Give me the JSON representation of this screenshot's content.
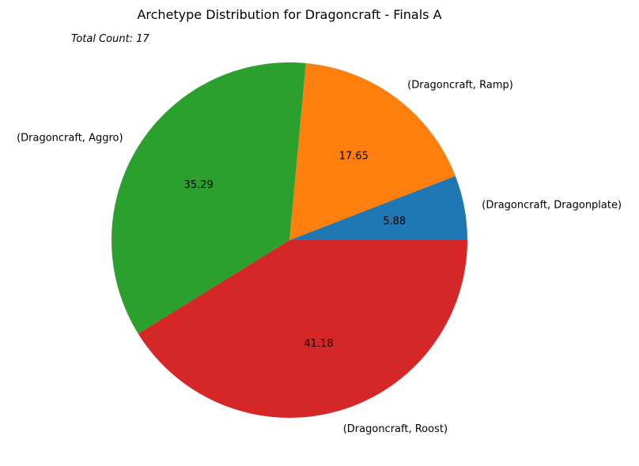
{
  "chart_data": {
    "type": "pie",
    "title": "Archetype Distribution for Dragoncraft - Finals A",
    "annotation": "Total Count: 17",
    "slices": [
      {
        "label": "(Dragoncraft, Dragonplate)",
        "value": 1,
        "pct_label": "5.88",
        "color": "#1f77b4"
      },
      {
        "label": "(Dragoncraft, Ramp)",
        "value": 3,
        "pct_label": "17.65",
        "color": "#ff7f0e"
      },
      {
        "label": "(Dragoncraft, Aggro)",
        "value": 6,
        "pct_label": "35.29",
        "color": "#2ca02c"
      },
      {
        "label": "(Dragoncraft, Roost)",
        "value": 7,
        "pct_label": "41.18",
        "color": "#d62728"
      }
    ],
    "start_angle_deg": 0,
    "direction": "counterclockwise"
  }
}
